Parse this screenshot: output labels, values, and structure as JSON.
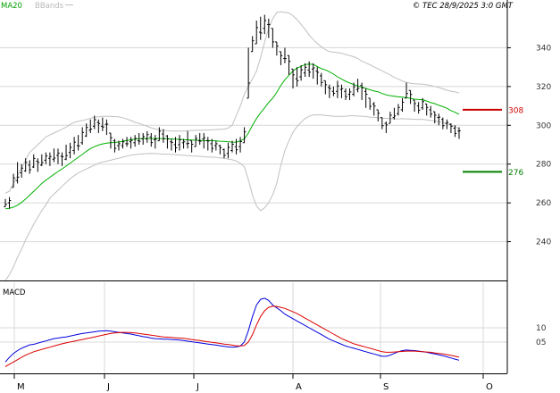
{
  "header": {
    "legend_ma": "MA20",
    "legend_bbands": "BBands",
    "copyright": "© TEC 28/9/2025 3:0 GMT"
  },
  "colors": {
    "price": "#000000",
    "ma20": "#00b000",
    "bbands": "#c0c0c0",
    "macd": "#0000dd",
    "signal": "#dd0000",
    "resistance": "#cc0000",
    "support": "#008000",
    "grid": "#d8d8d8",
    "axis": "#000000"
  },
  "chart_data": [
    {
      "type": "ohlc",
      "panel": "price",
      "x": [
        "M",
        "J",
        "J",
        "A",
        "S",
        "O"
      ],
      "ylim": [
        220,
        360
      ],
      "yticks": [
        "240",
        "260",
        "280",
        "300",
        "320",
        "340"
      ],
      "levels": [
        {
          "label": "308",
          "value": 308,
          "color": "resistance"
        },
        {
          "label": "276",
          "value": 276,
          "color": "support"
        }
      ],
      "bars": [
        [
          258,
          262
        ],
        [
          257,
          263
        ],
        [
          268,
          275
        ],
        [
          270,
          281
        ],
        [
          273,
          280
        ],
        [
          276,
          283
        ],
        [
          275,
          282
        ],
        [
          278,
          285
        ],
        [
          276,
          283
        ],
        [
          279,
          285
        ],
        [
          280,
          286
        ],
        [
          279,
          286
        ],
        [
          281,
          288
        ],
        [
          280,
          288
        ],
        [
          279,
          286
        ],
        [
          282,
          290
        ],
        [
          283,
          291
        ],
        [
          285,
          294
        ],
        [
          287,
          295
        ],
        [
          290,
          299
        ],
        [
          294,
          301
        ],
        [
          296,
          303
        ],
        [
          298,
          305
        ],
        [
          296,
          303
        ],
        [
          297,
          304
        ],
        [
          295,
          303
        ],
        [
          288,
          296
        ],
        [
          286,
          293
        ],
        [
          287,
          292
        ],
        [
          288,
          293
        ],
        [
          289,
          294
        ],
        [
          288,
          294
        ],
        [
          289,
          295
        ],
        [
          290,
          296
        ],
        [
          290,
          296
        ],
        [
          291,
          297
        ],
        [
          289,
          296
        ],
        [
          288,
          295
        ],
        [
          292,
          299
        ],
        [
          291,
          298
        ],
        [
          288,
          295
        ],
        [
          287,
          293
        ],
        [
          286,
          294
        ],
        [
          287,
          295
        ],
        [
          288,
          293
        ],
        [
          288,
          297
        ],
        [
          286,
          292
        ],
        [
          289,
          295
        ],
        [
          290,
          296
        ],
        [
          288,
          296
        ],
        [
          287,
          294
        ],
        [
          286,
          293
        ],
        [
          287,
          292
        ],
        [
          285,
          290
        ],
        [
          283,
          288
        ],
        [
          283,
          291
        ],
        [
          286,
          292
        ],
        [
          285,
          293
        ],
        [
          286,
          294
        ],
        [
          291,
          299
        ],
        [
          314,
          340
        ],
        [
          338,
          346
        ],
        [
          342,
          354
        ],
        [
          344,
          356
        ],
        [
          347,
          357
        ],
        [
          345,
          355
        ],
        [
          340,
          350
        ],
        [
          336,
          343
        ],
        [
          331,
          338
        ],
        [
          332,
          340
        ],
        [
          326,
          336
        ],
        [
          319,
          329
        ],
        [
          320,
          330
        ],
        [
          323,
          331
        ],
        [
          325,
          332
        ],
        [
          325,
          333
        ],
        [
          324,
          332
        ],
        [
          321,
          330
        ],
        [
          320,
          327
        ],
        [
          316,
          323
        ],
        [
          314,
          321
        ],
        [
          315,
          320
        ],
        [
          314,
          323
        ],
        [
          314,
          321
        ],
        [
          313,
          319
        ],
        [
          313,
          319
        ],
        [
          315,
          322
        ],
        [
          317,
          324
        ],
        [
          313,
          322
        ],
        [
          309,
          319
        ],
        [
          308,
          314
        ],
        [
          305,
          312
        ],
        [
          302,
          308
        ],
        [
          298,
          304
        ],
        [
          296,
          302
        ],
        [
          301,
          307
        ],
        [
          303,
          309
        ],
        [
          305,
          311
        ],
        [
          307,
          314
        ],
        [
          314,
          322
        ],
        [
          311,
          318
        ],
        [
          307,
          313
        ],
        [
          306,
          312
        ],
        [
          308,
          314
        ],
        [
          305,
          311
        ],
        [
          304,
          310
        ],
        [
          301,
          307
        ],
        [
          300,
          306
        ],
        [
          298,
          304
        ],
        [
          298,
          303
        ],
        [
          296,
          301
        ],
        [
          294,
          300
        ],
        [
          293,
          299
        ]
      ],
      "ma20": [
        257,
        257.2,
        257.8,
        258.8,
        260.2,
        262,
        264,
        266,
        268,
        270,
        271.7,
        273.2,
        274.7,
        276.2,
        277.5,
        279,
        280.5,
        282,
        283.5,
        285,
        286.6,
        288,
        289,
        289.8,
        290.4,
        290.8,
        291,
        291.2,
        291.4,
        291.8,
        292.2,
        292.6,
        292.9,
        293.1,
        293.2,
        293.2,
        293.2,
        293.2,
        293.2,
        293.1,
        293.1,
        293,
        292.9,
        292.7,
        292.6,
        292.5,
        292.4,
        292.3,
        292.2,
        292.1,
        292.1,
        292.1,
        292,
        291.8,
        291.7,
        291.5,
        291.4,
        291.3,
        292,
        293,
        296,
        300,
        303.5,
        306.5,
        309,
        311.8,
        314,
        317,
        320.6,
        323.5,
        325.8,
        328,
        329.5,
        330.4,
        331.3,
        331.6,
        331.4,
        330.3,
        329.2,
        328.6,
        327.6,
        326.4,
        325,
        323.8,
        322.7,
        321.8,
        321,
        320.3,
        319.7,
        319,
        318.3,
        317.7,
        317.3,
        316.4,
        315.7,
        315.3,
        315,
        314.7,
        314.5,
        314.3,
        313.9,
        313.5,
        313.3,
        313.2,
        312.5,
        311.7,
        311.2,
        310.3,
        309.6,
        308.8,
        307.6,
        306.7,
        305.6
      ],
      "bb_upper": [
        265,
        266,
        270,
        274,
        278,
        282,
        286,
        288,
        290,
        292,
        294,
        295,
        296,
        297,
        298,
        299,
        300.5,
        301.5,
        302,
        302.5,
        303,
        303.6,
        304.2,
        304.4,
        304.6,
        304.6,
        304.6,
        304.5,
        304.3,
        303.9,
        303.2,
        302.5,
        301.5,
        301,
        300.2,
        299.5,
        298.7,
        298.1,
        297.7,
        297.4,
        297.2,
        297.1,
        297,
        297,
        297,
        297.2,
        297.3,
        297.4,
        297.5,
        297.5,
        297.6,
        297.7,
        297.8,
        298,
        298,
        298.6,
        300,
        305,
        310,
        316,
        320,
        324,
        328,
        335,
        343,
        350,
        355,
        358.2,
        358.5,
        358.3,
        357.9,
        356.5,
        354.5,
        352,
        349.5,
        346.5,
        344.2,
        342.2,
        340.5,
        339,
        338,
        337.7,
        337.5,
        337.1,
        336.5,
        336,
        335.3,
        334.5,
        333,
        332.2,
        331.2,
        330.1,
        329.1,
        328.1,
        327,
        326,
        324.7,
        323.8,
        322.9,
        322.1,
        321.7,
        321.4,
        321.3,
        321.2,
        320.9,
        320.5,
        320,
        319.5,
        318.8,
        318.1,
        317.6,
        317.2,
        316.6
      ],
      "bb_lower": [
        220,
        223,
        227,
        232,
        236,
        241,
        245,
        249,
        252.5,
        256,
        259,
        262.5,
        264.5,
        266.5,
        268.5,
        270.5,
        272.5,
        274,
        275.5,
        276.5,
        277.5,
        278.5,
        279.5,
        280.4,
        281.1,
        281.5,
        282,
        282.6,
        283,
        283.6,
        284.1,
        284.6,
        284.9,
        285.1,
        285.3,
        285.4,
        285.5,
        285.4,
        285.3,
        285.1,
        285.1,
        285,
        284.9,
        284.7,
        284.5,
        284.4,
        284.2,
        284.1,
        284,
        283.8,
        283.7,
        283.6,
        283.4,
        283.2,
        283,
        282.6,
        282.2,
        281.6,
        280.4,
        278.6,
        272,
        264,
        258.4,
        256,
        257.5,
        260.1,
        264.2,
        270.2,
        279.3,
        287,
        292,
        296.3,
        299.4,
        301.6,
        303.5,
        304.7,
        305.3,
        305.4,
        305.4,
        305.1,
        304.9,
        304.6,
        304.6,
        304.6,
        304.7,
        304.9,
        304.9,
        304.8,
        304.7,
        304.5,
        304.2,
        304.1,
        303.8,
        303.7,
        303.6,
        303.4,
        303.3,
        303.3,
        303.4,
        303.3,
        303.2,
        303.1,
        303.1,
        303.1,
        302.8,
        302.5,
        302.2,
        301.8,
        301.4,
        300.9,
        300.3,
        299.3,
        298.2
      ]
    },
    {
      "type": "line",
      "panel": "macd",
      "title": "MACD",
      "ylim": [
        -0.3,
        1.3
      ],
      "yticks": [
        {
          "label": "10",
          "value": 0.5
        },
        {
          "label": "05",
          "value": 0.25
        }
      ],
      "series": [
        {
          "key": "macd",
          "color": "macd",
          "values": [
            -0.1,
            -0.02,
            0.05,
            0.1,
            0.14,
            0.17,
            0.2,
            0.21,
            0.23,
            0.25,
            0.27,
            0.29,
            0.31,
            0.32,
            0.33,
            0.34,
            0.355,
            0.37,
            0.385,
            0.4,
            0.41,
            0.42,
            0.43,
            0.44,
            0.445,
            0.45,
            0.44,
            0.43,
            0.42,
            0.41,
            0.4,
            0.39,
            0.375,
            0.36,
            0.345,
            0.335,
            0.32,
            0.31,
            0.305,
            0.3,
            0.3,
            0.295,
            0.29,
            0.285,
            0.275,
            0.265,
            0.255,
            0.245,
            0.235,
            0.225,
            0.215,
            0.205,
            0.195,
            0.185,
            0.175,
            0.165,
            0.16,
            0.165,
            0.18,
            0.25,
            0.45,
            0.7,
            0.9,
            1.0,
            1.02,
            0.98,
            0.9,
            0.85,
            0.8,
            0.74,
            0.7,
            0.66,
            0.62,
            0.58,
            0.54,
            0.5,
            0.46,
            0.42,
            0.38,
            0.34,
            0.3,
            0.27,
            0.24,
            0.21,
            0.18,
            0.16,
            0.14,
            0.12,
            0.1,
            0.08,
            0.06,
            0.04,
            0.02,
            0.0,
            0.0,
            0.02,
            0.05,
            0.08,
            0.1,
            0.11,
            0.105,
            0.1,
            0.09,
            0.08,
            0.07,
            0.055,
            0.04,
            0.025,
            0.01,
            -0.01,
            -0.03,
            -0.05,
            -0.07
          ]
        },
        {
          "key": "signal",
          "color": "signal",
          "values": [
            -0.18,
            -0.14,
            -0.1,
            -0.06,
            -0.02,
            0.02,
            0.05,
            0.08,
            0.1,
            0.12,
            0.14,
            0.16,
            0.18,
            0.2,
            0.22,
            0.235,
            0.25,
            0.265,
            0.28,
            0.295,
            0.31,
            0.325,
            0.34,
            0.355,
            0.37,
            0.385,
            0.4,
            0.41,
            0.415,
            0.42,
            0.42,
            0.415,
            0.41,
            0.4,
            0.39,
            0.38,
            0.37,
            0.36,
            0.35,
            0.34,
            0.335,
            0.33,
            0.325,
            0.32,
            0.315,
            0.305,
            0.295,
            0.285,
            0.275,
            0.265,
            0.255,
            0.245,
            0.235,
            0.225,
            0.215,
            0.205,
            0.195,
            0.185,
            0.18,
            0.19,
            0.25,
            0.38,
            0.55,
            0.7,
            0.8,
            0.86,
            0.88,
            0.875,
            0.86,
            0.84,
            0.81,
            0.78,
            0.75,
            0.71,
            0.67,
            0.63,
            0.59,
            0.55,
            0.51,
            0.47,
            0.43,
            0.39,
            0.35,
            0.31,
            0.28,
            0.25,
            0.22,
            0.2,
            0.18,
            0.16,
            0.14,
            0.12,
            0.1,
            0.08,
            0.07,
            0.07,
            0.075,
            0.08,
            0.085,
            0.09,
            0.09,
            0.09,
            0.085,
            0.08,
            0.075,
            0.07,
            0.06,
            0.05,
            0.04,
            0.03,
            0.015,
            0.0,
            -0.015
          ]
        }
      ]
    }
  ]
}
